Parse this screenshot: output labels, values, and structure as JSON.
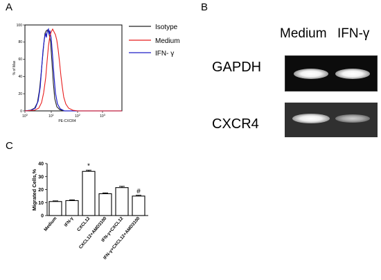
{
  "panels": {
    "a": "A",
    "b": "B",
    "c": "C"
  },
  "flow": {
    "xlabel": "PE-CXCR4",
    "ylabel": "% of Max",
    "y_ticks": [
      "0",
      "20",
      "40",
      "60",
      "80",
      "100"
    ],
    "x_ticks": [
      "10",
      "10",
      "10",
      "10"
    ],
    "x_exponents": [
      "0",
      "1",
      "2",
      "3"
    ],
    "legend": [
      {
        "name": "Isotype",
        "color": "#222222"
      },
      {
        "name": "Medium",
        "color": "#e81c1c"
      },
      {
        "name": "IFN- γ",
        "color": "#1c1cc8"
      }
    ]
  },
  "gel": {
    "lanes": [
      "Medium",
      "IFN-γ"
    ],
    "rows": [
      {
        "label": "GAPDH",
        "intensity": [
          1.0,
          1.0
        ]
      },
      {
        "label": "CXCR4",
        "intensity": [
          0.95,
          0.55
        ]
      }
    ]
  },
  "chart_data": {
    "type": "bar",
    "ylabel": "Migrated Cells,%",
    "ylim": [
      0,
      40
    ],
    "yticks": [
      0,
      10,
      20,
      30,
      40
    ],
    "categories": [
      "Medium",
      "IFN-γ",
      "CXCL12",
      "CXCL12+AMD3100",
      "IFN-γ+CXCL12",
      "IFN-γ+CXCL12+AMD3100"
    ],
    "values": [
      10.8,
      11.5,
      34.0,
      16.8,
      21.5,
      15.0
    ],
    "errors": [
      0.5,
      0.6,
      0.9,
      0.6,
      1.0,
      0.6
    ],
    "annotations": [
      "",
      "",
      "*",
      "",
      "",
      "#"
    ]
  }
}
